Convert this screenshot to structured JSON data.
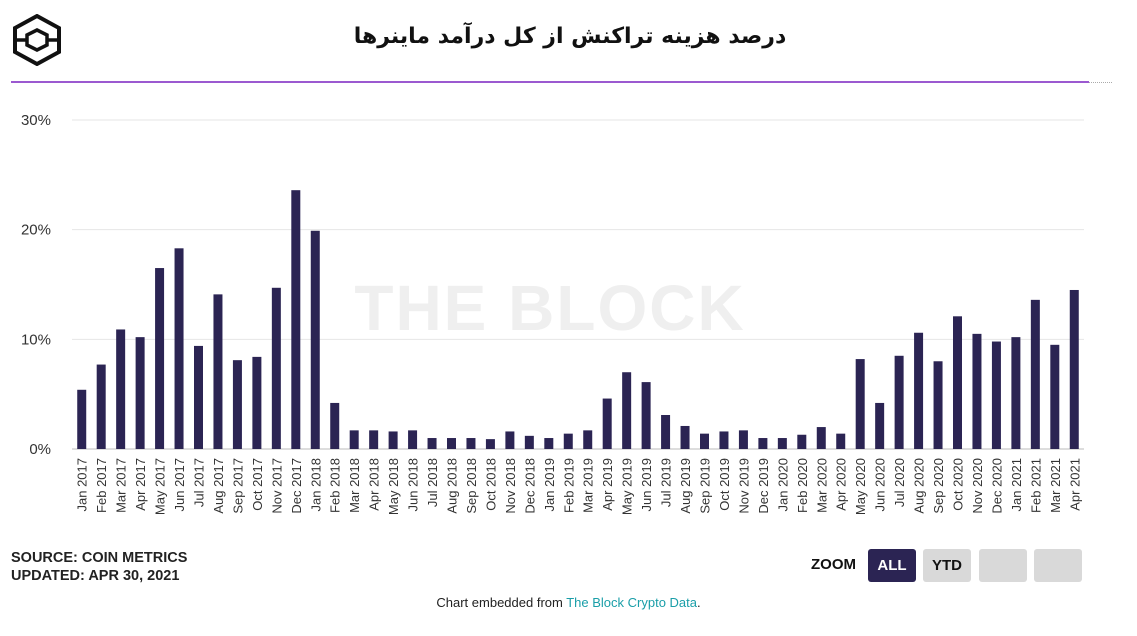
{
  "header": {
    "title": "درصد هزینه تراکنش از کل درآمد ماینرها",
    "logo_icon": "the-block-cube-logo"
  },
  "watermark": "THE BLOCK",
  "colors": {
    "bar": "#2b2453",
    "rule": "#9b59d0",
    "link": "#1a9ea8"
  },
  "chart_data": {
    "type": "bar",
    "title": "درصد هزینه تراکنش از کل درآمد ماینرها",
    "xlabel": "",
    "ylabel": "",
    "ylim": [
      0,
      30
    ],
    "yticks": [
      "0%",
      "10%",
      "20%",
      "30%"
    ],
    "grid": true,
    "categories": [
      "Jan 2017",
      "Feb 2017",
      "Mar 2017",
      "Apr 2017",
      "May 2017",
      "Jun 2017",
      "Jul 2017",
      "Aug 2017",
      "Sep 2017",
      "Oct 2017",
      "Nov 2017",
      "Dec 2017",
      "Jan 2018",
      "Feb 2018",
      "Mar 2018",
      "Apr 2018",
      "May 2018",
      "Jun 2018",
      "Jul 2018",
      "Aug 2018",
      "Sep 2018",
      "Oct 2018",
      "Nov 2018",
      "Dec 2018",
      "Jan 2019",
      "Feb 2019",
      "Mar 2019",
      "Apr 2019",
      "May 2019",
      "Jun 2019",
      "Jul 2019",
      "Aug 2019",
      "Sep 2019",
      "Oct 2019",
      "Nov 2019",
      "Dec 2019",
      "Jan 2020",
      "Feb 2020",
      "Mar 2020",
      "Apr 2020",
      "May 2020",
      "Jun 2020",
      "Jul 2020",
      "Aug 2020",
      "Sep 2020",
      "Oct 2020",
      "Nov 2020",
      "Dec 2020",
      "Jan 2021",
      "Feb 2021",
      "Mar 2021",
      "Apr 2021"
    ],
    "values": [
      5.4,
      7.7,
      10.9,
      10.2,
      16.5,
      18.3,
      9.4,
      14.1,
      8.1,
      8.4,
      14.7,
      23.6,
      19.9,
      4.2,
      1.7,
      1.7,
      1.6,
      1.7,
      1.0,
      1.0,
      1.0,
      0.9,
      1.6,
      1.2,
      1.0,
      1.4,
      1.7,
      4.6,
      7.0,
      6.1,
      3.1,
      2.1,
      1.4,
      1.6,
      1.7,
      1.0,
      1.0,
      1.3,
      2.0,
      1.4,
      8.2,
      4.2,
      8.5,
      10.6,
      8.0,
      12.1,
      10.5,
      9.8,
      10.2,
      13.6,
      9.5,
      14.5
    ]
  },
  "footer": {
    "source": "SOURCE: COIN METRICS",
    "updated": "UPDATED: APR 30, 2021",
    "zoom_label": "ZOOM",
    "zoom_all": "ALL",
    "zoom_ytd": "YTD",
    "embed_prefix": "Chart embedded from ",
    "embed_link": "The Block Crypto Data",
    "embed_suffix": "."
  }
}
